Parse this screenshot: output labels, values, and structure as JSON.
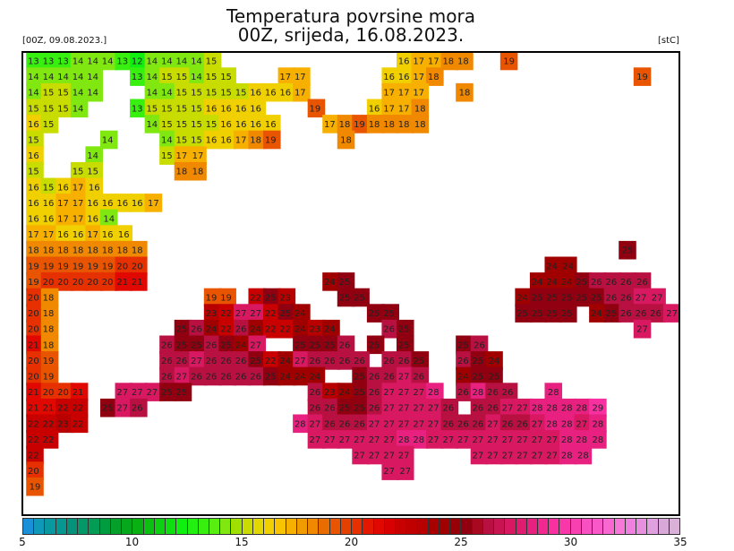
{
  "header": {
    "title": "Temperatura povrsine mora",
    "subtitle": "00Z, srijeda, 16.08.2023.",
    "init_label": "[00Z, 09.08.2023.]",
    "unit_label": "[stC]"
  },
  "colorbar": {
    "min": 5,
    "max": 35,
    "step": 0.5,
    "tick_labels": [
      "5",
      "10",
      "15",
      "20",
      "25",
      "30",
      "35"
    ],
    "colors": [
      "#1a90d8",
      "#1098b8",
      "#0a98a0",
      "#069890",
      "#04927a",
      "#039868",
      "#029c54",
      "#019c40",
      "#04a02a",
      "#06a81c",
      "#08b012",
      "#0ac010",
      "#0cd010",
      "#0ee010",
      "#10f010",
      "#22f010",
      "#38f010",
      "#58ee10",
      "#80e810",
      "#a0e000",
      "#c8dc00",
      "#e0d800",
      "#f0d000",
      "#f8c400",
      "#f8b000",
      "#f09c00",
      "#f08800",
      "#e86c00",
      "#e85400",
      "#e44000",
      "#e63000",
      "#e41800",
      "#e00800",
      "#d80000",
      "#c80000",
      "#c00000",
      "#b80000",
      "#a80000",
      "#a00000",
      "#980008",
      "#900010",
      "#a80820",
      "#b81040",
      "#c81450",
      "#d81860",
      "#e01c70",
      "#e82080",
      "#f02890",
      "#f830a0",
      "#f838a8",
      "#f840b0",
      "#f850c0",
      "#f858c8",
      "#f868d0",
      "#f878d8",
      "#f080e0",
      "#e890e0",
      "#e0a0e0",
      "#d8a8d8",
      "#d8b0d8"
    ]
  },
  "sst_grid": {
    "rows": [
      "13 13 13 14 14 14 13 12 14 14 14 14 15 . . . . . . . . . . . . 16 17 17 18 18 . . 19",
      "14 14 14 14 14 . . 13 14 15 15 14 15 15 . . . 17 17 . . . . . 16 16 17 18 . . . . . . . . . . . . . 19",
      "14 15 15 14 14 . . . 14 14 15 15 15 15 15 16 16 16 17 . . . . . 17 17 17 . . 18",
      "15 15 15 14 . . . 13 15 15 15 15 16 16 16 16 . . . 19 . . . 16 17 17 18",
      "16 15 . . . . . . 14 15 15 15 15 16 16 16 16 . . . 17 18 19 18 18 18 18",
      "15 . . . . 14 . . . 14 15 15 16 16 17 18 19 . . . . 18",
      "16 . . . 14 . . . . 15 17 17",
      "15 . . 15 15 . . . . . 18 18",
      "16 15 16 17 16",
      "16 16 17 17 16 16 16 16 17",
      "16 16 17 17 16 14",
      "17 17 16 16 17 16 16",
      "18 18 18 18 18 18 18 18 . . . . . . . . . . . . . . . . . . . . . . . . . . . . . . . . 25",
      "19 19 19 19 19 19 20 20 . . . . . . . . . . . . . . . . . . . . . . . . . . . 24 24",
      "19 20 20 20 20 20 21 21 . . . . . . . . . . . . 24 25 . . . . . . . . . . . . 24 24 24 25 26 26 26 26",
      "20 18 . . . . . . . . . . 19 19 . 22 25 23 . . . 25 25 . . . . . . . . . . 24 25 25 25 25 25 26 26 27 27",
      "20 18 . . . . . . . . . . 23 22 27 27 22 25 24 . . . . 25 25 . . . . . . . . 25 25 25 25 . 24 25 26 26 26 27",
      "20 18 . . . . . . . . 25 26 24 22 26 24 22 22 24 23 24 . . . 26 25 . . . . . . . . . . . . . . . 27",
      "21 18 . . . . . . . 26 25 25 26 25 24 27 . . 25 25 25 26 . 25 . 25 . . . 25 26",
      "20 19 . . . . . . . 26 26 27 26 26 26 25 22 24 27 26 26 26 26 . 26 26 25 . . 26 25 24",
      "20 19 . . . . . . . 26 27 26 26 26 26 26 25 24 24 24 . . 25 26 26 27 26 . . 24 25 25",
      "21 20 20 21 . . 27 27 27 25 25 . . . . . . . . 26 23 24 25 26 27 27 27 28 . 26 28 26 26 . . 28",
      "21 21 22 22 . 25 27 26 . . . . . . . . . . . 26 26 25 25 26 27 27 27 27 26 . 26 26 27 27 28 28 28 28 29",
      "22 22 23 22 . . . . . . . . . . . . . . 28 27 26 26 26 27 27 27 27 27 26 26 26 27 26 26 27 28 28 27 28",
      "22 22 . . . . . . . . . . . . . . . . . 27 27 27 27 27 27 28 28 27 27 27 27 27 27 27 27 27 28 28 28",
      "22 . . . . . . . . . . . . . . . . . . . . . 27 27 27 27 . . . . 27 27 27 27 27 27 28 28",
      "20 . . . . . . . . . . . . . . . . . . . . . . . 27 27",
      "19"
    ]
  }
}
